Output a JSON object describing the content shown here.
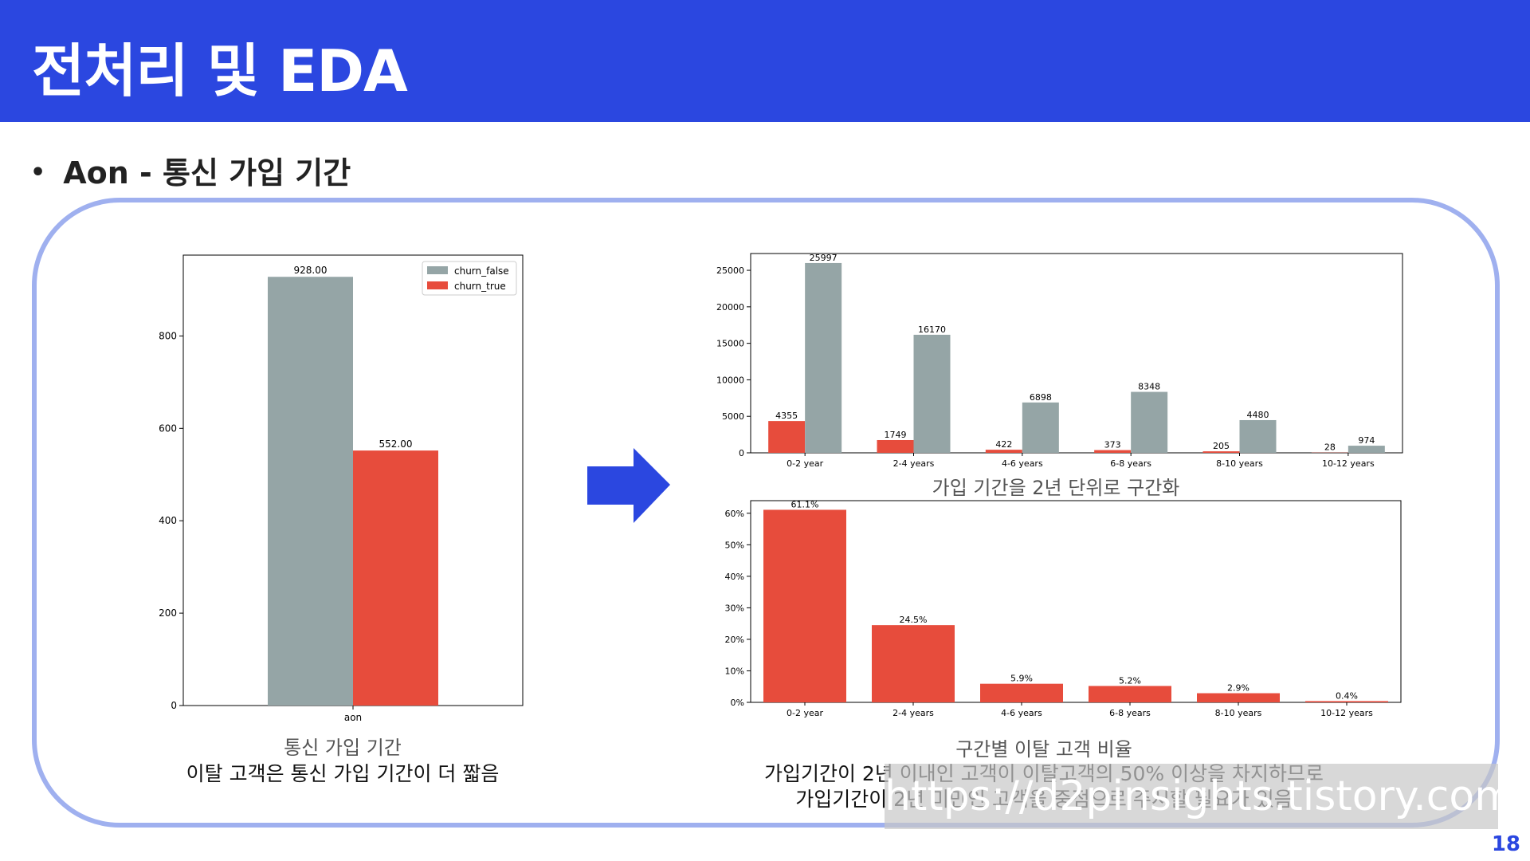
{
  "header": {
    "title": "전처리 및 EDA"
  },
  "bullet": {
    "text": "Aon - 통신 가입 기간"
  },
  "colors": {
    "header_bg": "#2b47e0",
    "frame": "#9fb0ef",
    "churn_false": "#95a5a6",
    "churn_true": "#e74c3c",
    "arrow": "#2b47e0"
  },
  "left_chart": {
    "caption": "통신 가입 기간",
    "subcaption": "이탈 고객은 통신 가입 기간이 더 짧음"
  },
  "right_top_chart": {
    "caption": "가입 기간을 2년 단위로 구간화"
  },
  "right_bottom_chart": {
    "caption": "구간별 이탈 고객 비율",
    "subcaption_line1": "가입기간이 2년 이내인 고객이 이탈고객의 50% 이상을 차지하므로",
    "subcaption_line2": "가입기간이 2년 미만인 고객을 중점으로 주시할 필요가 있음"
  },
  "watermark": {
    "text": "https://d2pinsights.tistory.com"
  },
  "page_number": "18",
  "chart_data": [
    {
      "type": "bar",
      "categories": [
        "aon"
      ],
      "series": [
        {
          "name": "churn_false",
          "values": [
            928.0
          ],
          "color": "#95a5a6"
        },
        {
          "name": "churn_true",
          "values": [
            552.0
          ],
          "color": "#e74c3c"
        }
      ],
      "data_labels": [
        "928.00",
        "552.00"
      ],
      "yticks": [
        0,
        200,
        400,
        600,
        800
      ],
      "ylim": [
        0,
        975
      ],
      "legend": "top-right",
      "grid": false
    },
    {
      "type": "bar",
      "categories": [
        "0-2 year",
        "2-4 years",
        "4-6 years",
        "6-8 years",
        "8-10 years",
        "10-12 years"
      ],
      "series": [
        {
          "name": "churn_true",
          "values": [
            4355,
            1749,
            422,
            373,
            205,
            28
          ],
          "color": "#e74c3c"
        },
        {
          "name": "churn_false",
          "values": [
            25997,
            16170,
            6898,
            8348,
            4480,
            974
          ],
          "color": "#95a5a6"
        }
      ],
      "yticks": [
        0,
        5000,
        10000,
        15000,
        20000,
        25000
      ],
      "ylim": [
        0,
        27300
      ],
      "grid": false
    },
    {
      "type": "bar",
      "categories": [
        "0-2 year",
        "2-4 years",
        "4-6 years",
        "6-8 years",
        "8-10 years",
        "10-12 years"
      ],
      "series": [
        {
          "name": "",
          "values": [
            61.1,
            24.5,
            5.9,
            5.2,
            2.9,
            0.4
          ],
          "color": "#e74c3c"
        }
      ],
      "data_labels": [
        "61.1%",
        "24.5%",
        "5.9%",
        "5.2%",
        "2.9%",
        "0.4%"
      ],
      "yticks": [
        "0%",
        "10%",
        "20%",
        "30%",
        "40%",
        "50%",
        "60%"
      ],
      "ylim": [
        0,
        64
      ],
      "grid": false
    }
  ]
}
